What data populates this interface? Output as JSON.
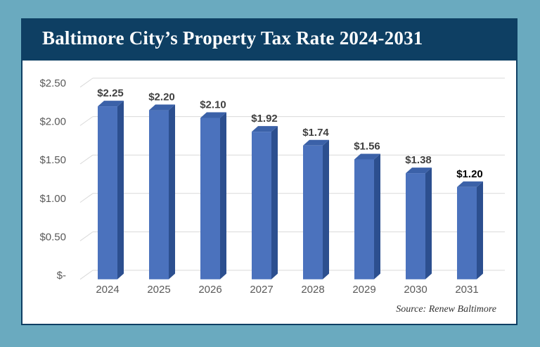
{
  "title": "Baltimore City’s Property Tax Rate 2024-2031",
  "source": "Source: Renew Baltimore",
  "colors": {
    "background": "#6aaabf",
    "header": "#0e3f63",
    "bar_front": "#4b72bd",
    "bar_side": "#2c4f8f",
    "bar_top": "#3b61a8",
    "grid": "#d9d9d9"
  },
  "chart_data": {
    "type": "bar",
    "categories": [
      "2024",
      "2025",
      "2026",
      "2027",
      "2028",
      "2029",
      "2030",
      "2031"
    ],
    "values": [
      2.25,
      2.2,
      2.1,
      1.92,
      1.74,
      1.56,
      1.38,
      1.2
    ],
    "data_labels": [
      "$2.25",
      "$2.20",
      "$2.10",
      "$1.92",
      "$1.74",
      "$1.56",
      "$1.38",
      "$1.20"
    ],
    "ylim": [
      0,
      2.5
    ],
    "yticks": [
      0,
      0.5,
      1.0,
      1.5,
      2.0,
      2.5
    ],
    "ytick_labels": [
      "$-",
      "$0.50",
      "$1.00",
      "$1.50",
      "$2.00",
      "$2.50"
    ],
    "grid": true,
    "title": "",
    "xlabel": "",
    "ylabel": ""
  }
}
